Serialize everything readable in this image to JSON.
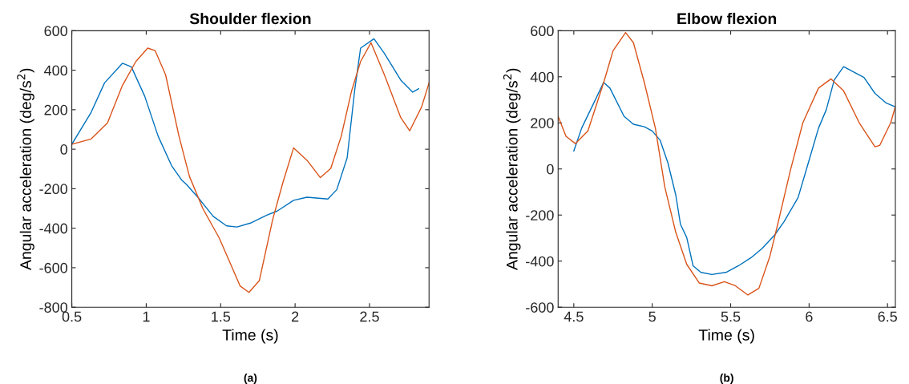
{
  "chart_data": [
    {
      "type": "line",
      "title": "Shoulder flexion",
      "xlabel": "Time (s)",
      "ylabel": "Angular acceleration (deg/s$^{2}$)",
      "xlim": [
        0.5,
        2.9
      ],
      "ylim": [
        -800,
        600
      ],
      "xticks": [
        0.5,
        1,
        1.5,
        2,
        2.5
      ],
      "yticks": [
        -800,
        -600,
        -400,
        -200,
        0,
        200,
        400,
        600
      ],
      "grid": false,
      "annotations": [
        "(a)"
      ],
      "series": [
        {
          "color": "#0072bd",
          "x": [
            0.5,
            0.63,
            0.72,
            0.84,
            0.9,
            0.99,
            1.08,
            1.17,
            1.24,
            1.27,
            1.35,
            1.45,
            1.54,
            1.61,
            1.7,
            1.81,
            1.88,
            1.99,
            2.08,
            2.22,
            2.28,
            2.35,
            2.4,
            2.44,
            2.53,
            2.6,
            2.71,
            2.79,
            2.83
          ],
          "values": [
            25,
            187,
            336,
            435,
            417,
            268,
            66,
            -83,
            -158,
            -178,
            -246,
            -340,
            -388,
            -394,
            -374,
            -334,
            -313,
            -259,
            -243,
            -252,
            -205,
            -43,
            296,
            512,
            559,
            485,
            350,
            289,
            306
          ]
        },
        {
          "color": "#d95319",
          "x": [
            0.5,
            0.63,
            0.74,
            0.84,
            0.93,
            1.01,
            1.06,
            1.13,
            1.22,
            1.29,
            1.38,
            1.49,
            1.56,
            1.63,
            1.69,
            1.76,
            1.85,
            1.92,
            1.99,
            2.08,
            2.17,
            2.24,
            2.31,
            2.38,
            2.44,
            2.51,
            2.6,
            2.71,
            2.77,
            2.85,
            2.9
          ],
          "values": [
            25,
            52,
            133,
            323,
            444,
            512,
            499,
            377,
            66,
            -137,
            -300,
            -449,
            -570,
            -692,
            -725,
            -665,
            -354,
            -164,
            7,
            -56,
            -144,
            -97,
            66,
            296,
            444,
            539,
            377,
            160,
            93,
            214,
            336
          ]
        }
      ]
    },
    {
      "type": "line",
      "title": "Elbow flexion",
      "xlabel": "Time (s)",
      "ylabel": "Angular acceleration (deg/s$^{2}$)",
      "xlim": [
        4.4,
        6.55
      ],
      "ylim": [
        -600,
        600
      ],
      "xticks": [
        4.5,
        5,
        5.5,
        6,
        6.5
      ],
      "yticks": [
        -600,
        -400,
        -200,
        0,
        200,
        400,
        600
      ],
      "grid": false,
      "annotations": [
        "(b)"
      ],
      "series": [
        {
          "color": "#0072bd",
          "x": [
            4.5,
            4.55,
            4.64,
            4.69,
            4.73,
            4.82,
            4.88,
            4.95,
            5.0,
            5.05,
            5.1,
            5.15,
            5.18,
            5.22,
            5.26,
            5.31,
            5.38,
            5.47,
            5.55,
            5.63,
            5.7,
            5.78,
            5.84,
            5.93,
            5.99,
            6.06,
            6.11,
            6.16,
            6.22,
            6.35,
            6.42,
            6.49,
            6.55
          ],
          "values": [
            78,
            177,
            304,
            376,
            351,
            229,
            194,
            183,
            165,
            125,
            26,
            -113,
            -240,
            -298,
            -420,
            -449,
            -458,
            -449,
            -420,
            -385,
            -345,
            -287,
            -229,
            -124,
            15,
            177,
            258,
            386,
            444,
            397,
            328,
            287,
            270
          ]
        },
        {
          "color": "#d95319",
          "x": [
            4.4,
            4.45,
            4.51,
            4.59,
            4.69,
            4.75,
            4.83,
            4.88,
            4.95,
            5.02,
            5.08,
            5.15,
            5.22,
            5.3,
            5.38,
            5.46,
            5.53,
            5.61,
            5.68,
            5.75,
            5.8,
            5.88,
            5.96,
            6.06,
            6.14,
            6.22,
            6.32,
            6.42,
            6.45,
            6.52,
            6.55
          ],
          "values": [
            229,
            142,
            110,
            165,
            374,
            513,
            592,
            548,
            374,
            177,
            -78,
            -275,
            -414,
            -495,
            -507,
            -489,
            -507,
            -547,
            -518,
            -379,
            -240,
            -8,
            200,
            351,
            391,
            339,
            200,
            96,
            102,
            200,
            270
          ]
        }
      ]
    }
  ]
}
